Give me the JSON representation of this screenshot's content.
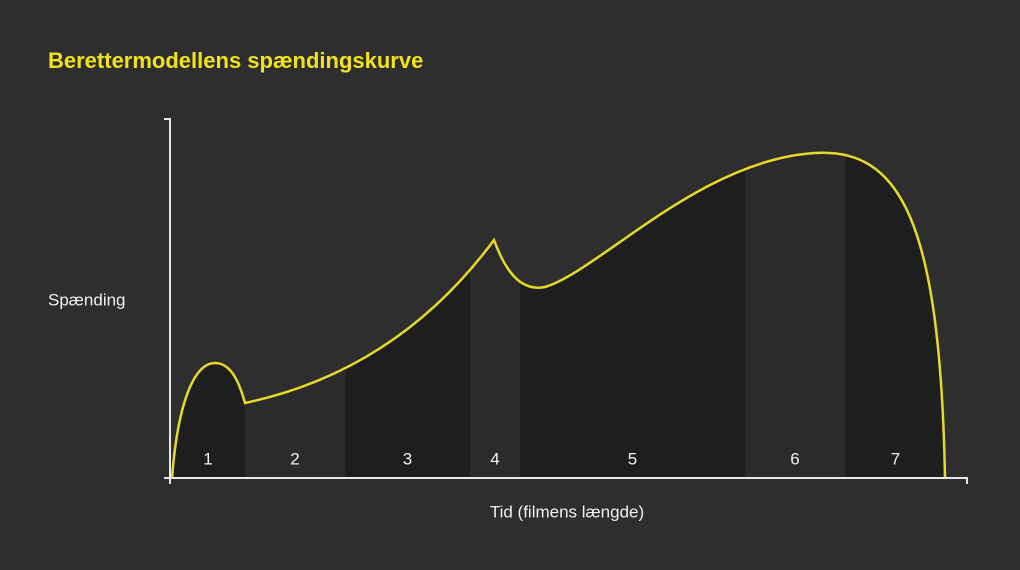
{
  "title": "Berettermodellens spændingskurve",
  "y_label": "Spænding",
  "x_label": "Tid (filmens længde)",
  "segments": [
    "1",
    "2",
    "3",
    "4",
    "5",
    "6",
    "7"
  ]
}
